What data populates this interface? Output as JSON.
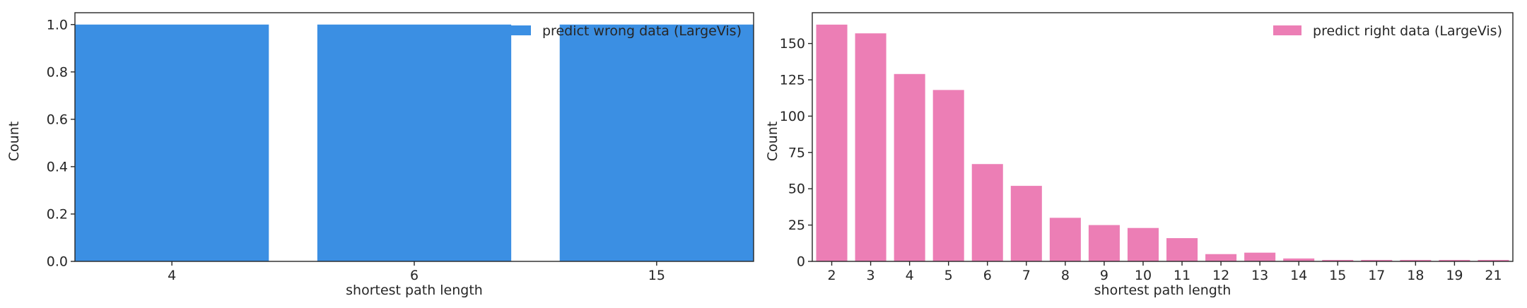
{
  "chart_data": [
    {
      "type": "bar",
      "title": "",
      "xlabel": "shortest path length",
      "ylabel": "Count",
      "categories": [
        "4",
        "6",
        "15"
      ],
      "series": [
        {
          "name": "predict wrong data (LargeVis)",
          "values": [
            1,
            1,
            1
          ]
        }
      ],
      "ylim": [
        0,
        1.05
      ],
      "yticks": [
        0.0,
        0.2,
        0.4,
        0.6,
        0.8,
        1.0
      ],
      "ytick_labels": [
        "0.0",
        "0.2",
        "0.4",
        "0.6",
        "0.8",
        "1.0"
      ],
      "color": "#3b8fe3",
      "legend_position": "top-right",
      "grid": false
    },
    {
      "type": "bar",
      "title": "",
      "xlabel": "shortest path length",
      "ylabel": "Count",
      "categories": [
        "2",
        "3",
        "4",
        "5",
        "6",
        "7",
        "8",
        "9",
        "10",
        "11",
        "12",
        "13",
        "14",
        "15",
        "17",
        "18",
        "19",
        "21"
      ],
      "series": [
        {
          "name": "predict right data (LargeVis)",
          "values": [
            163,
            157,
            129,
            118,
            67,
            52,
            30,
            25,
            23,
            16,
            5,
            6,
            2,
            1,
            1,
            1,
            1,
            1
          ]
        }
      ],
      "ylim": [
        0,
        171.2
      ],
      "yticks": [
        0,
        25,
        50,
        75,
        100,
        125,
        150
      ],
      "ytick_labels": [
        "0",
        "25",
        "50",
        "75",
        "100",
        "125",
        "150"
      ],
      "color": "#ec7eb5",
      "legend_position": "top-right",
      "grid": false
    }
  ]
}
